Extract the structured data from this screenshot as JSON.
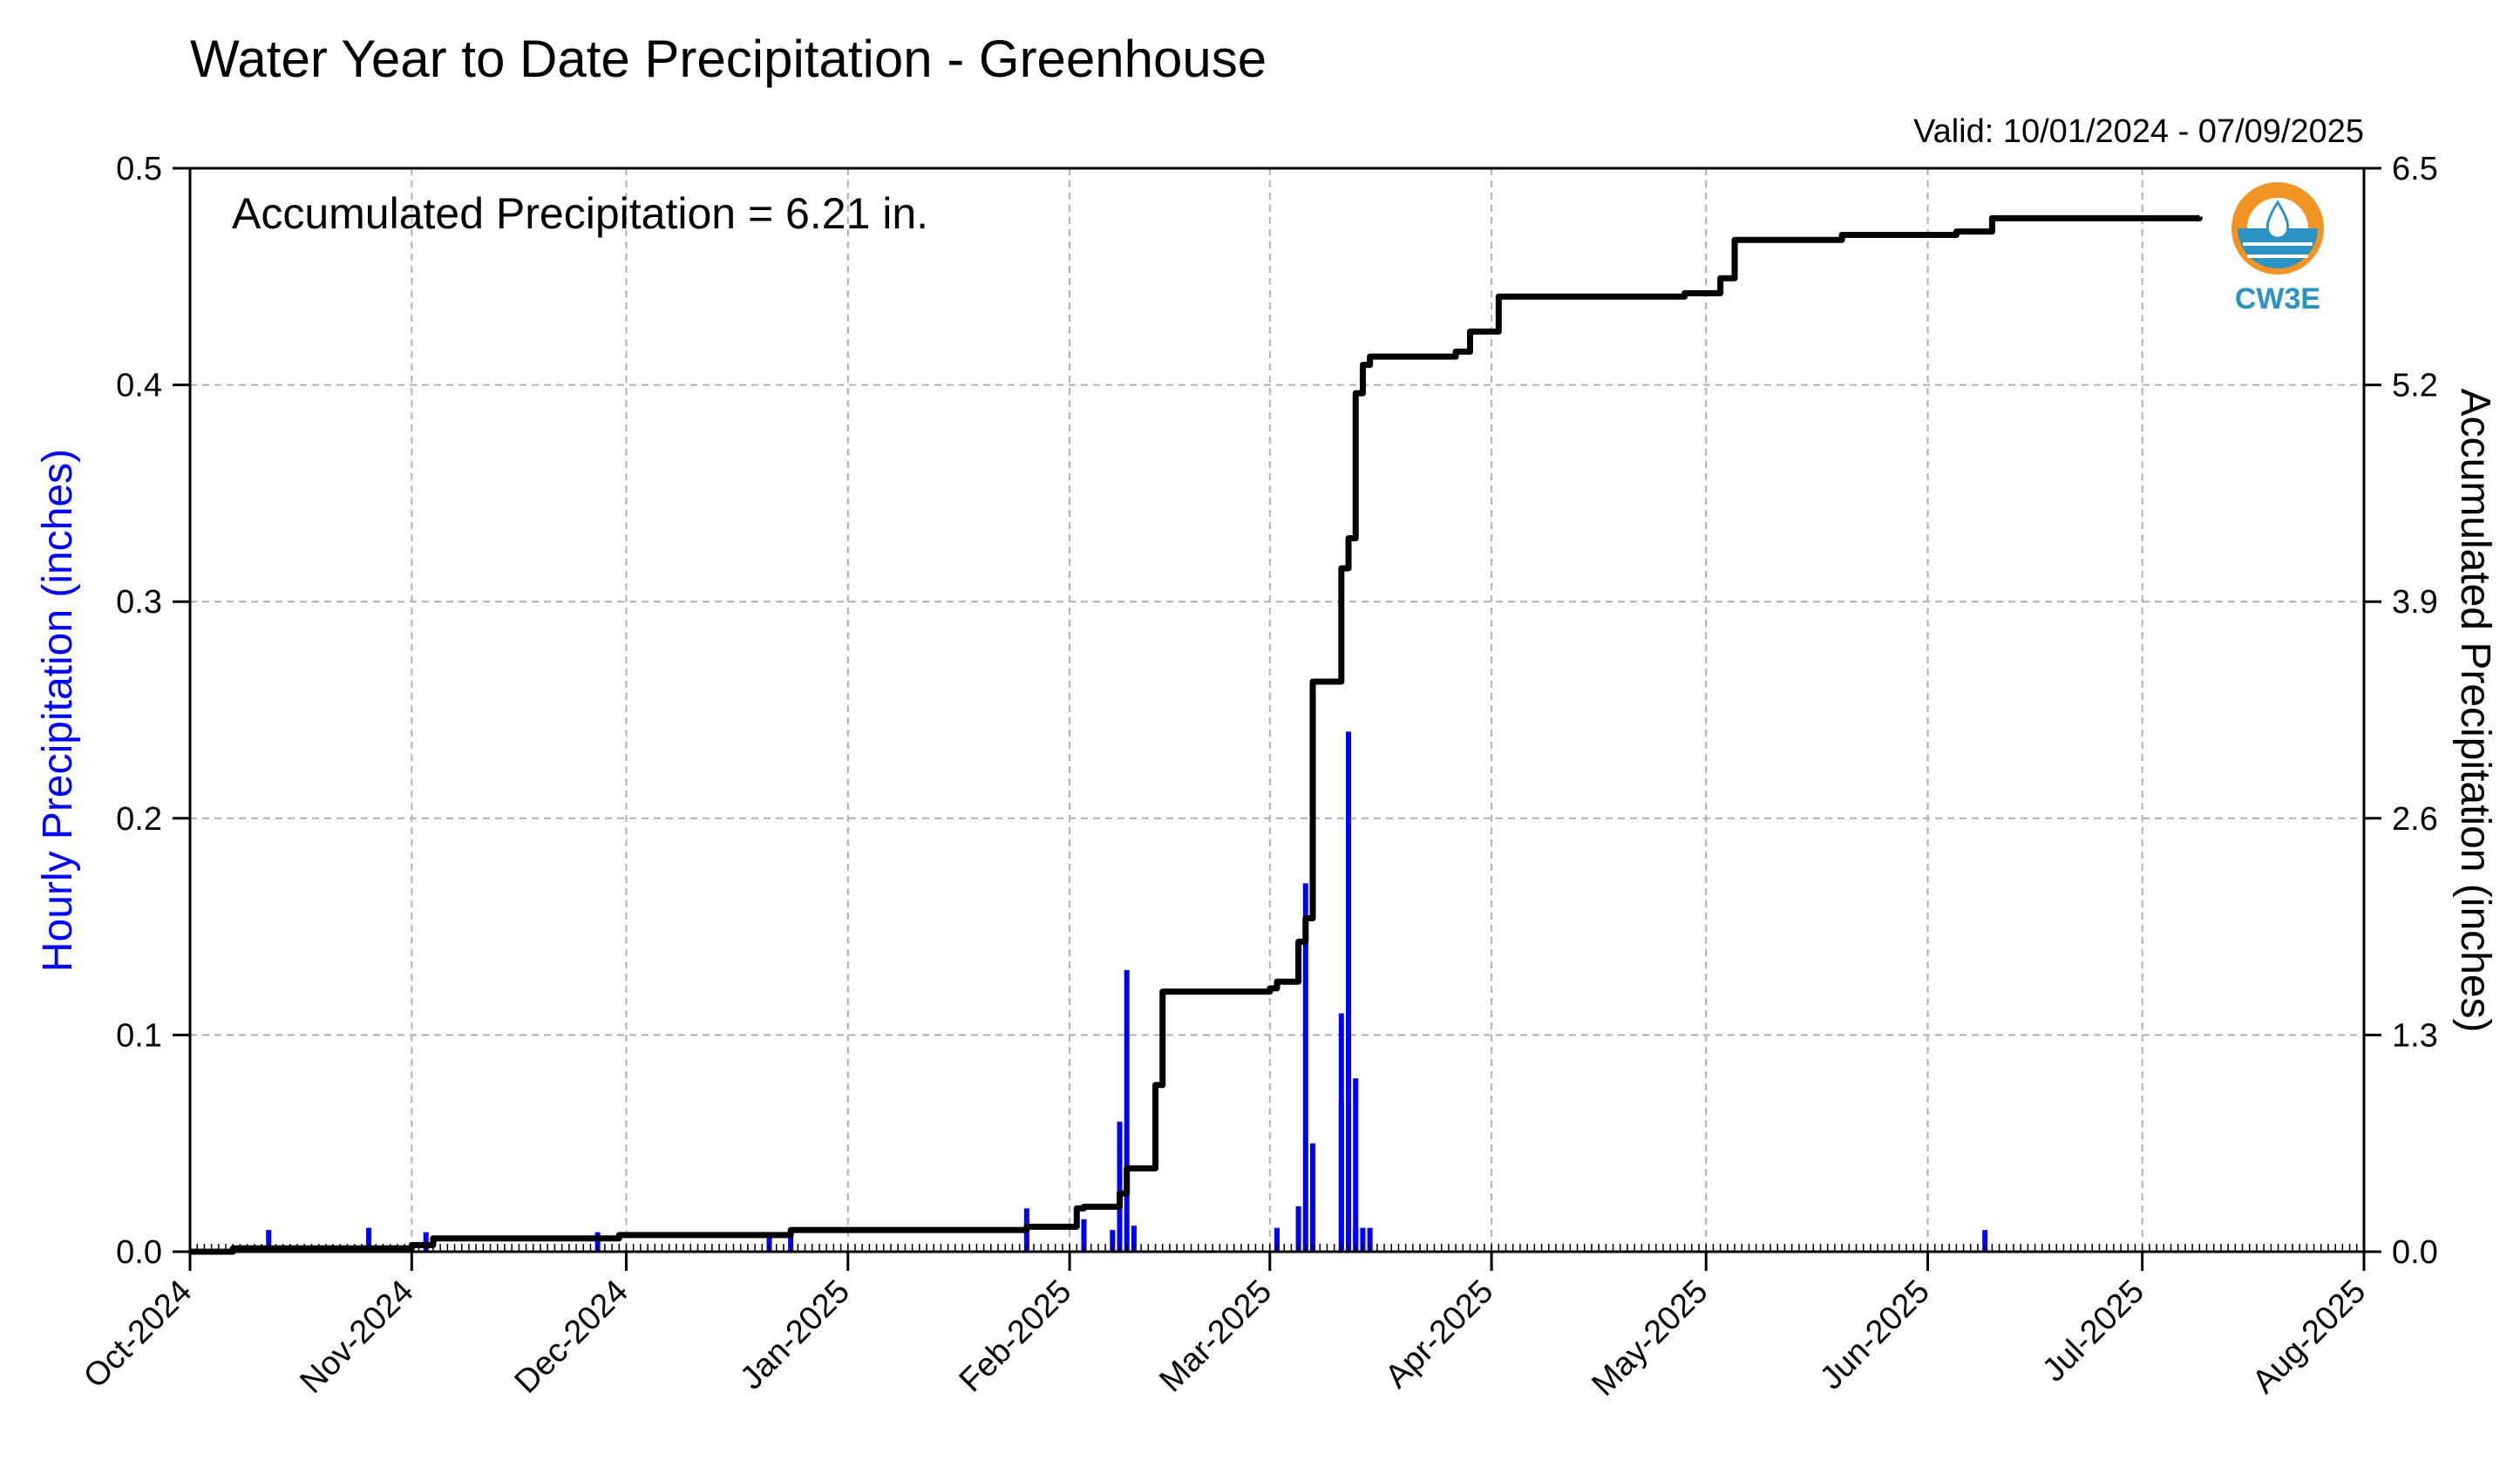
{
  "chart_data": {
    "type": "bar",
    "title": "Water Year to Date Precipitation - Greenhouse",
    "subtitle": "Valid: 10/01/2024 - 07/09/2025",
    "annotation": "Accumulated Precipitation = 6.21 in.",
    "ylabel_left": "Hourly Precipitation (inches)",
    "ylabel_right": "Accumulated Precipitation (inches)",
    "xlim": [
      "2024-10-01",
      "2025-08-01"
    ],
    "ylim_left": [
      0,
      0.5
    ],
    "ylim_right": [
      0,
      6.5
    ],
    "x_ticks": [
      {
        "date": "2024-10-01",
        "label": "Oct-2024"
      },
      {
        "date": "2024-11-01",
        "label": "Nov-2024"
      },
      {
        "date": "2024-12-01",
        "label": "Dec-2024"
      },
      {
        "date": "2025-01-01",
        "label": "Jan-2025"
      },
      {
        "date": "2025-02-01",
        "label": "Feb-2025"
      },
      {
        "date": "2025-03-01",
        "label": "Mar-2025"
      },
      {
        "date": "2025-04-01",
        "label": "Apr-2025"
      },
      {
        "date": "2025-05-01",
        "label": "May-2025"
      },
      {
        "date": "2025-06-01",
        "label": "Jun-2025"
      },
      {
        "date": "2025-07-01",
        "label": "Jul-2025"
      },
      {
        "date": "2025-08-01",
        "label": "Aug-2025"
      }
    ],
    "y_ticks_left": [
      "0.0",
      "0.1",
      "0.2",
      "0.3",
      "0.4",
      "0.5"
    ],
    "y_ticks_right": [
      "0.0",
      "1.3",
      "2.6",
      "3.9",
      "5.2",
      "6.5"
    ],
    "grid": true,
    "hourly_precipitation": {
      "name": "Hourly Precipitation",
      "color": "#0000ff",
      "x": [
        "2024-10-12",
        "2024-10-26",
        "2024-11-03",
        "2024-11-27",
        "2024-12-21",
        "2024-12-24",
        "2025-01-26",
        "2025-02-03",
        "2025-02-07",
        "2025-02-08",
        "2025-02-09",
        "2025-02-10",
        "2025-03-02",
        "2025-03-05",
        "2025-03-06",
        "2025-03-07",
        "2025-03-11",
        "2025-03-11",
        "2025-03-12",
        "2025-03-12",
        "2025-03-13",
        "2025-03-13",
        "2025-03-14",
        "2025-03-15",
        "2025-06-09"
      ],
      "values": [
        0.01,
        0.011,
        0.009,
        0.009,
        0.008,
        0.01,
        0.02,
        0.015,
        0.01,
        0.06,
        0.13,
        0.012,
        0.011,
        0.021,
        0.17,
        0.05,
        0.07,
        0.11,
        0.011,
        0.24,
        0.08,
        0.011,
        0.011,
        0.011,
        0.01
      ]
    },
    "accumulated_precipitation": {
      "name": "Accumulated Precipitation",
      "color": "#000000",
      "x": [
        "2024-10-01",
        "2024-10-07",
        "2024-11-01",
        "2024-11-04",
        "2024-11-30",
        "2024-12-24",
        "2025-01-26",
        "2025-02-02",
        "2025-02-03",
        "2025-02-08",
        "2025-02-09",
        "2025-02-13",
        "2025-02-13",
        "2025-02-14",
        "2025-03-01",
        "2025-03-02",
        "2025-03-05",
        "2025-03-06",
        "2025-03-07",
        "2025-03-10",
        "2025-03-11",
        "2025-03-12",
        "2025-03-13",
        "2025-03-14",
        "2025-03-15",
        "2025-03-27",
        "2025-03-29",
        "2025-04-02",
        "2025-04-28",
        "2025-05-03",
        "2025-05-05",
        "2025-05-20",
        "2025-06-05",
        "2025-06-10",
        "2025-07-09"
      ],
      "values": [
        0.0,
        0.02,
        0.04,
        0.08,
        0.1,
        0.13,
        0.15,
        0.26,
        0.27,
        0.35,
        0.5,
        0.7,
        1.0,
        1.56,
        1.58,
        1.62,
        1.86,
        2.0,
        3.42,
        3.42,
        4.1,
        4.28,
        5.15,
        5.32,
        5.37,
        5.4,
        5.52,
        5.73,
        5.75,
        5.84,
        6.07,
        6.1,
        6.12,
        6.2,
        6.21
      ]
    }
  },
  "logo": {
    "text": "CW3E",
    "ring_color": "#f29423",
    "water_color": "#2b93c4"
  }
}
